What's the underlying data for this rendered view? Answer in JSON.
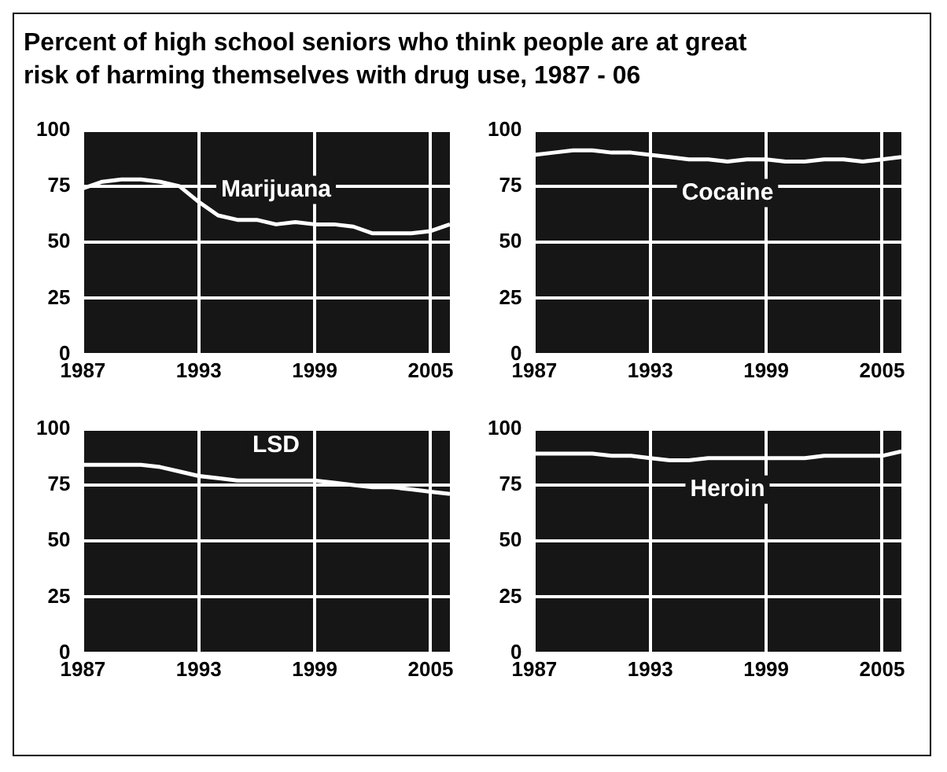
{
  "chart_data": [
    {
      "type": "line",
      "title": "Percent of high school seniors who think people are at great risk of harming themselves with drug use, 1987 - 06",
      "x": [
        1987,
        1988,
        1989,
        1990,
        1991,
        1992,
        1993,
        1994,
        1995,
        1996,
        1997,
        1998,
        1999,
        2000,
        2001,
        2002,
        2003,
        2004,
        2005,
        2006
      ],
      "series": [
        {
          "name": "Marijuana",
          "color": "#ffffff",
          "values": [
            74,
            77,
            78,
            78,
            77,
            75,
            68,
            62,
            60,
            60,
            58,
            59,
            58,
            58,
            57,
            54,
            54,
            54,
            55,
            58
          ]
        }
      ],
      "xlim": [
        1987,
        2006
      ],
      "xticks": [
        1987,
        1993,
        1999,
        2005
      ],
      "ylim": [
        0,
        100
      ],
      "yticks": [
        0,
        25,
        50,
        75,
        100
      ],
      "grid": true,
      "marker": "none"
    },
    {
      "type": "line",
      "x": [
        1987,
        1988,
        1989,
        1990,
        1991,
        1992,
        1993,
        1994,
        1995,
        1996,
        1997,
        1998,
        1999,
        2000,
        2001,
        2002,
        2003,
        2004,
        2005,
        2006
      ],
      "series": [
        {
          "name": "Cocaine",
          "color": "#ffffff",
          "values": [
            89,
            90,
            91,
            91,
            90,
            90,
            89,
            88,
            87,
            87,
            86,
            87,
            87,
            86,
            86,
            87,
            87,
            86,
            87,
            88
          ]
        }
      ],
      "xlim": [
        1987,
        2006
      ],
      "xticks": [
        1987,
        1993,
        1999,
        2005
      ],
      "ylim": [
        0,
        100
      ],
      "yticks": [
        0,
        25,
        50,
        75,
        100
      ],
      "grid": true,
      "marker": "none"
    },
    {
      "type": "line",
      "x": [
        1987,
        1988,
        1989,
        1990,
        1991,
        1992,
        1993,
        1994,
        1995,
        1996,
        1997,
        1998,
        1999,
        2000,
        2001,
        2002,
        2003,
        2004,
        2005,
        2006
      ],
      "series": [
        {
          "name": "LSD",
          "color": "#ffffff",
          "values": [
            84,
            84,
            84,
            84,
            83,
            81,
            79,
            78,
            77,
            77,
            77,
            77,
            77,
            76,
            75,
            74,
            74,
            73,
            72,
            71
          ]
        }
      ],
      "xlim": [
        1987,
        2006
      ],
      "xticks": [
        1987,
        1993,
        1999,
        2005
      ],
      "ylim": [
        0,
        100
      ],
      "yticks": [
        0,
        25,
        50,
        75,
        100
      ],
      "grid": true,
      "marker": "none"
    },
    {
      "type": "line",
      "x": [
        1987,
        1988,
        1989,
        1990,
        1991,
        1992,
        1993,
        1994,
        1995,
        1996,
        1997,
        1998,
        1999,
        2000,
        2001,
        2002,
        2003,
        2004,
        2005,
        2006
      ],
      "series": [
        {
          "name": "Heroin",
          "color": "#ffffff",
          "values": [
            89,
            89,
            89,
            89,
            88,
            88,
            87,
            86,
            86,
            87,
            87,
            87,
            87,
            87,
            87,
            88,
            88,
            88,
            88,
            90
          ]
        }
      ],
      "xlim": [
        1987,
        2006
      ],
      "xticks": [
        1987,
        1993,
        1999,
        2005
      ],
      "ylim": [
        0,
        100
      ],
      "yticks": [
        0,
        25,
        50,
        75,
        100
      ],
      "grid": true,
      "marker": "none"
    }
  ]
}
